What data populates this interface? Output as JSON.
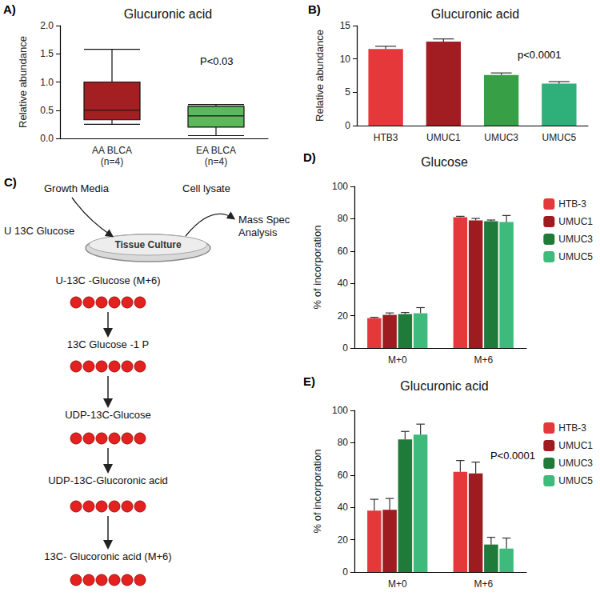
{
  "chart_data": [
    {
      "panel": "A)",
      "type": "box",
      "title": "Glucuronic acid",
      "y_label": "Relative abundance",
      "annotation": "P<0.03",
      "categories": [
        "AA BLCA\n(n=4)",
        "EA BLCA\n(n=4)"
      ],
      "values": [
        [
          0.25,
          0.33,
          0.5,
          1.0,
          1.58
        ],
        [
          0.05,
          0.2,
          0.4,
          0.57,
          0.6
        ]
      ],
      "colors": [
        "#a31f22",
        "#5cb85c"
      ],
      "ylim": [
        0,
        2
      ],
      "yticks": [
        {
          "value": 0,
          "label": "0.0"
        },
        {
          "value": 0.5,
          "label": "0.5"
        },
        {
          "value": 1,
          "label": "1.0"
        },
        {
          "value": 1.5,
          "label": "1.5"
        },
        {
          "value": 2,
          "label": "2.0"
        }
      ],
      "grid": false
    },
    {
      "panel": "B)",
      "type": "bar",
      "title": "Glucuronic acid",
      "y_label": "Relative abundance",
      "annotation": "p<0.0001",
      "categories": [
        "HTB3",
        "UMUC1",
        "UMUC3",
        "UMUC5"
      ],
      "values": [
        11.5,
        12.6,
        7.6,
        6.3
      ],
      "errors": [
        0.4,
        0.4,
        0.3,
        0.3
      ],
      "colors": [
        "#e5383b",
        "#a11d21",
        "#37a047",
        "#2fb07a"
      ],
      "ylim": [
        0,
        15
      ],
      "yticks": [
        0,
        5,
        10,
        15
      ],
      "grid": false
    },
    {
      "panel": "D)",
      "type": "bar",
      "title": "Glucose",
      "y_label": "% of incorporation",
      "categories": [
        "M+0",
        "M+6"
      ],
      "series": [
        {
          "name": "HTB-3",
          "color": "#e5383b",
          "values": [
            18.5,
            81
          ],
          "errors": [
            0.5,
            0.5
          ]
        },
        {
          "name": "UMUC1",
          "color": "#9e1b20",
          "values": [
            20.5,
            79
          ],
          "errors": [
            1.2,
            1.2
          ]
        },
        {
          "name": "UMUC3",
          "color": "#1e7b3a",
          "values": [
            21,
            78.5
          ],
          "errors": [
            1,
            0.7
          ]
        },
        {
          "name": "UMUC5",
          "color": "#3dba7c",
          "values": [
            21.5,
            78
          ],
          "errors": [
            3.5,
            4
          ]
        }
      ],
      "ylim": [
        0,
        100
      ],
      "yticks": [
        0,
        20,
        40,
        60,
        80,
        100
      ],
      "legend": "upper right",
      "grid": false
    },
    {
      "panel": "E)",
      "type": "bar",
      "title": "Glucuronic acid",
      "y_label": "% of incorporation",
      "annotation": "P<0.0001",
      "categories": [
        "M+0",
        "M+6"
      ],
      "series": [
        {
          "name": "HTB-3",
          "color": "#e5383b",
          "values": [
            38,
            62
          ],
          "errors": [
            7,
            7
          ]
        },
        {
          "name": "UMUC1",
          "color": "#9e1b20",
          "values": [
            38.5,
            61
          ],
          "errors": [
            7,
            7
          ]
        },
        {
          "name": "UMUC3",
          "color": "#1e7b3a",
          "values": [
            82,
            17
          ],
          "errors": [
            5,
            4.5
          ]
        },
        {
          "name": "UMUC5",
          "color": "#3dba7c",
          "values": [
            85,
            14.5
          ],
          "errors": [
            6.5,
            6.5
          ]
        }
      ],
      "ylim": [
        0,
        100
      ],
      "yticks": [
        0,
        20,
        40,
        60,
        80,
        100
      ],
      "legend": "upper right",
      "grid": false
    }
  ],
  "diagram": {
    "panel": "C)",
    "media": "Growth Media",
    "lysate": "Cell lysate",
    "tracer": "U 13C Glucose",
    "dish": "Tissue Culture",
    "analysis": "Mass Spec\nAnalysis",
    "pathway": [
      {
        "label": "U-13C -Glucose (M+6)",
        "carbons": 6
      },
      {
        "label": "13C Glucose -1 P",
        "carbons": 6
      },
      {
        "label": "UDP-13C-Glucose",
        "carbons": 6
      },
      {
        "label": "UDP-13C-Glucoronic acid",
        "carbons": 6
      },
      {
        "label": "13C- Glucoronic acid (M+6)",
        "carbons": 6
      }
    ]
  }
}
